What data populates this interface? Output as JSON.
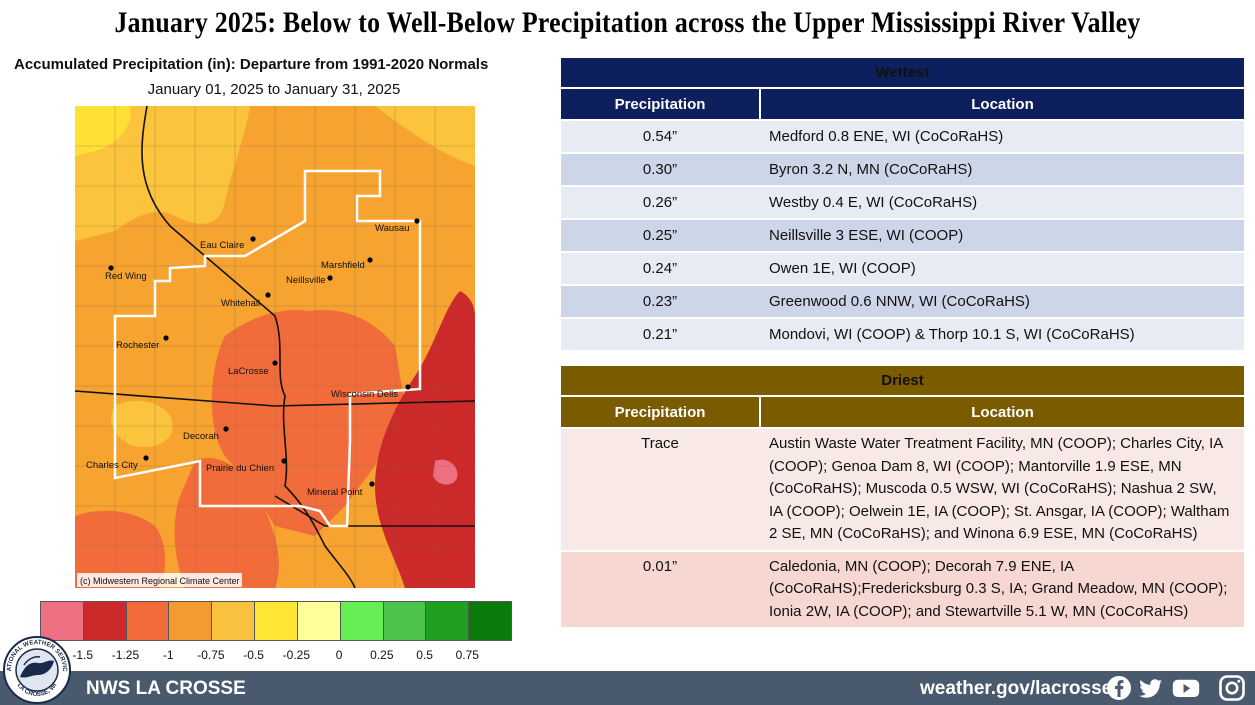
{
  "title": "January 2025:  Below to Well-Below Precipitation across the Upper Mississippi River Valley",
  "map": {
    "title": "Accumulated Precipitation (in): Departure from 1991-2020 Normals",
    "subtitle": "January 01, 2025 to January 31, 2025",
    "credit": "(c) Midwestern Regional Climate Center",
    "cities": [
      {
        "name": "Eau Claire"
      },
      {
        "name": "Wausau"
      },
      {
        "name": "Red Wing"
      },
      {
        "name": "Marshfield"
      },
      {
        "name": "Neillsville"
      },
      {
        "name": "Whitehall"
      },
      {
        "name": "Rochester"
      },
      {
        "name": "LaCrosse"
      },
      {
        "name": "Wisconsin Dells"
      },
      {
        "name": "Decorah"
      },
      {
        "name": "Charles City"
      },
      {
        "name": "Prairie du Chien"
      },
      {
        "name": "Mineral Point"
      }
    ]
  },
  "legend": {
    "colors": [
      "#ee6f82",
      "#cc2a2a",
      "#f26a3a",
      "#f59a2e",
      "#f9c23e",
      "#ffe534",
      "#ffff99",
      "#66ee55",
      "#4cc24a",
      "#1fa01f",
      "#0a7a0a"
    ],
    "ticks": [
      "-1.5",
      "-1.25",
      "-1",
      "-0.75",
      "-0.5",
      "-0.25",
      "0",
      "0.25",
      "0.5",
      "0.75"
    ]
  },
  "wettest": {
    "header": "Wettest",
    "col_precip": "Precipitation",
    "col_location": "Location",
    "rows": [
      {
        "precip": "0.54”",
        "location": "Medford 0.8 ENE, WI (CoCoRaHS)"
      },
      {
        "precip": "0.30”",
        "location": "Byron 3.2 N, MN (CoCoRaHS)"
      },
      {
        "precip": "0.26”",
        "location": "Westby 0.4 E, WI (CoCoRaHS)"
      },
      {
        "precip": "0.25”",
        "location": "Neillsville 3 ESE, WI (COOP)"
      },
      {
        "precip": "0.24”",
        "location": "Owen 1E, WI (COOP)"
      },
      {
        "precip": "0.23”",
        "location": "Greenwood 0.6 NNW, WI (CoCoRaHS)"
      },
      {
        "precip": "0.21”",
        "location": "Mondovi, WI (COOP) & Thorp 10.1 S, WI (CoCoRaHS)"
      }
    ]
  },
  "driest": {
    "header": "Driest",
    "col_precip": "Precipitation",
    "col_location": "Location",
    "rows": [
      {
        "precip": "Trace",
        "location": "Austin Waste Water Treatment Facility, MN (COOP); Charles City, IA (COOP); Genoa Dam 8, WI (COOP); Mantorville 1.9 ESE, MN (CoCoRaHS); Muscoda 0.5 WSW, WI (CoCoRaHS); Nashua 2 SW, IA (COOP); Oelwein 1E, IA (COOP);  St. Ansgar, IA (COOP);  Waltham 2 SE, MN (CoCoRaHS); and Winona 6.9 ESE, MN (CoCoRaHS)"
      },
      {
        "precip": "0.01”",
        "location": "Caledonia, MN (COOP); Decorah 7.9 ENE, IA (CoCoRaHS);Fredericksburg 0.3 S, IA; Grand Meadow, MN (COOP); Ionia 2W, IA (COOP); and Stewartville 5.1 W, MN (CoCoRaHS)"
      }
    ]
  },
  "footer": {
    "office": "NWS LA CROSSE",
    "url": "weather.gov/lacrosse",
    "seal_text_top": "NATIONAL WEATHER SERVICE",
    "seal_text_bottom": "LA CROSSE, WI",
    "social_icons": [
      "facebook-icon",
      "twitter-icon",
      "youtube-icon",
      "instagram-icon"
    ]
  }
}
